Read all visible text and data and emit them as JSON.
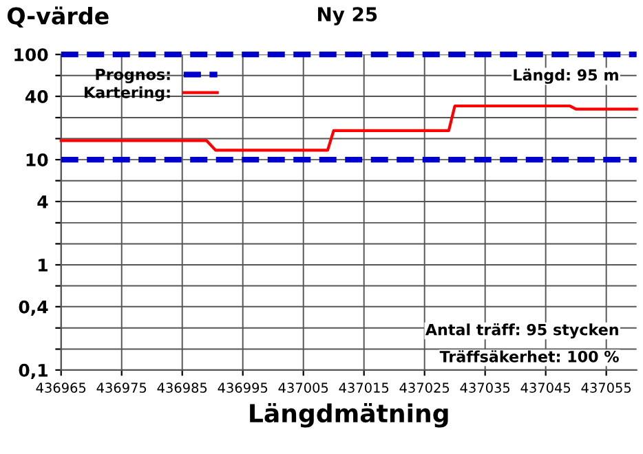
{
  "chart_data": {
    "type": "line",
    "title": "Ny 25",
    "ylabel": "Q-värde",
    "xlabel": "Längdmätning",
    "annotations": [
      "Längd: 95 m",
      "Antal träff: 95 stycken",
      "Träffsäkerhet: 100 %"
    ],
    "log": "y",
    "grid": true,
    "legend": "top left",
    "line_style": "solid",
    "marker": "none",
    "xlim": [
      436965,
      437060
    ],
    "xticks": [
      436965,
      436975,
      436985,
      436995,
      437005,
      437015,
      437025,
      437035,
      437045,
      437055
    ],
    "ylim": [
      0.1,
      100
    ],
    "yticks": [
      {
        "value": 0.1,
        "label": "0,1"
      },
      {
        "value": 0.158,
        "label": null
      },
      {
        "value": 0.251,
        "label": null
      },
      {
        "value": 0.4,
        "label": "0,4"
      },
      {
        "value": 0.631,
        "label": null
      },
      1,
      {
        "value": 1.585,
        "label": null
      },
      {
        "value": 2.51,
        "label": null
      },
      4,
      {
        "value": 6.31,
        "label": null
      },
      10,
      {
        "value": 15.85,
        "label": null
      },
      {
        "value": 25.1,
        "label": null
      },
      40,
      {
        "value": 63.1,
        "label": null
      },
      100
    ],
    "series": [
      {
        "name": "Prognos:",
        "color": "#0000cc",
        "line_style": "dashed",
        "x": [
          436965,
          437060
        ],
        "values": [
          100,
          100
        ]
      },
      {
        "color": "#0000cc",
        "line_style": "dashed",
        "x": [
          436965,
          437060
        ],
        "values": [
          10,
          10
        ]
      },
      {
        "name": "Kartering:",
        "color": "#ff0000",
        "x": [
          436965,
          436989,
          436990.5,
          437009,
          437010,
          437029,
          437030,
          437049,
          437050,
          437060
        ],
        "values": [
          15.2,
          15.2,
          12.3,
          12.3,
          18.9,
          18.9,
          32.4,
          32.4,
          30.2,
          30.2
        ]
      }
    ]
  }
}
